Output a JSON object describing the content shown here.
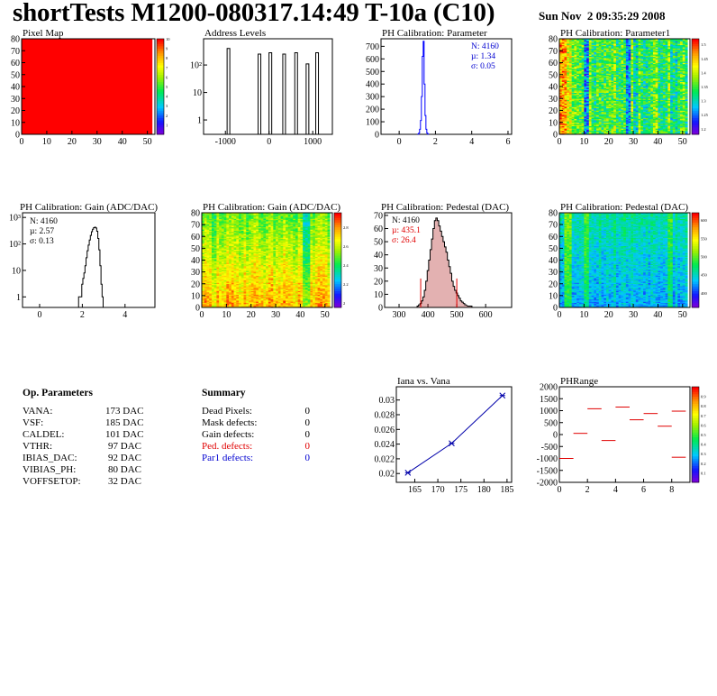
{
  "page": {
    "title": "shortTests M1200-080317.14:49 T-10a (C10)",
    "date": "Sun Nov  2 09:35:29 2008"
  },
  "chart_data": [
    {
      "id": "pixel_map",
      "type": "heatmap",
      "title": "Pixel Map",
      "xlim": [
        0,
        53
      ],
      "ylim": [
        0,
        80
      ],
      "xticks": [
        0,
        10,
        20,
        30,
        40,
        50
      ],
      "yticks": [
        0,
        10,
        20,
        30,
        40,
        50,
        60,
        70,
        80
      ],
      "fill": "uniform",
      "value": 10,
      "zlim": [
        0,
        10
      ],
      "zticks": [
        0,
        1,
        2,
        3,
        4,
        5,
        6,
        7,
        8,
        9,
        10
      ],
      "zticklabels": [
        "",
        "1",
        "2",
        "3",
        "4",
        "5",
        "6",
        "7",
        "8",
        "9",
        "10"
      ]
    },
    {
      "id": "address_levels",
      "type": "histogram",
      "title": "Address Levels",
      "xlim": [
        -1500,
        1450
      ],
      "ylog": true,
      "ylim": [
        0.3,
        900
      ],
      "xticks": [
        -1000,
        0,
        1000
      ],
      "yticks": [
        1,
        10,
        100
      ],
      "yticklabels": [
        "1",
        "10",
        "10²"
      ],
      "peaks": [
        {
          "x": -930,
          "height": 400
        },
        {
          "x": -220,
          "height": 250
        },
        {
          "x": 30,
          "height": 280
        },
        {
          "x": 345,
          "height": 250
        },
        {
          "x": 620,
          "height": 280
        },
        {
          "x": 880,
          "height": 110
        },
        {
          "x": 1100,
          "height": 280
        }
      ]
    },
    {
      "id": "ph_param",
      "type": "histogram",
      "title": "PH Calibration: Parameter",
      "xlim": [
        -1,
        6.2
      ],
      "ylim": [
        0,
        760
      ],
      "xticks": [
        0,
        2,
        4,
        6
      ],
      "yticks": [
        0,
        100,
        200,
        300,
        400,
        500,
        600,
        700
      ],
      "bins": [
        [
          1.05,
          2
        ],
        [
          1.1,
          10
        ],
        [
          1.15,
          40
        ],
        [
          1.2,
          110
        ],
        [
          1.25,
          300
        ],
        [
          1.3,
          620
        ],
        [
          1.35,
          740
        ],
        [
          1.4,
          400
        ],
        [
          1.45,
          150
        ],
        [
          1.5,
          40
        ],
        [
          1.55,
          10
        ],
        [
          1.6,
          2
        ]
      ],
      "stats": {
        "n": "N: 4160",
        "mean": "µ: 1.34",
        "sigma": "σ: 0.05"
      }
    },
    {
      "id": "ph_param1",
      "type": "heatmap",
      "title": "PH Calibration: Parameter1",
      "xlim": [
        0,
        53
      ],
      "ylim": [
        0,
        80
      ],
      "xticks": [
        0,
        10,
        20,
        30,
        40,
        50
      ],
      "yticks": [
        0,
        10,
        20,
        30,
        40,
        50,
        60,
        70,
        80
      ],
      "zlim": [
        1.18,
        1.52
      ],
      "zticks": [
        1.2,
        1.25,
        1.3,
        1.35,
        1.4,
        1.45,
        1.5
      ],
      "zticklabels": [
        "1.2",
        "1.25",
        "1.3",
        "1.35",
        "1.4",
        "1.45",
        "1.5"
      ]
    },
    {
      "id": "gain_hist",
      "type": "histogram",
      "title": "PH Calibration: Gain (ADC/DAC)",
      "xlim": [
        -0.8,
        5.4
      ],
      "ylog": true,
      "ylim": [
        0.4,
        1500
      ],
      "xticks": [
        0,
        2,
        4
      ],
      "yticks": [
        1,
        10,
        100,
        1000
      ],
      "yticklabels": [
        "1",
        "10",
        "10²",
        "10³"
      ],
      "bins": [
        [
          1.85,
          1
        ],
        [
          1.95,
          1
        ],
        [
          2.0,
          3
        ],
        [
          2.05,
          5
        ],
        [
          2.1,
          8
        ],
        [
          2.15,
          15
        ],
        [
          2.2,
          30
        ],
        [
          2.25,
          55
        ],
        [
          2.3,
          90
        ],
        [
          2.35,
          140
        ],
        [
          2.4,
          210
        ],
        [
          2.45,
          290
        ],
        [
          2.5,
          360
        ],
        [
          2.55,
          410
        ],
        [
          2.6,
          430
        ],
        [
          2.65,
          400
        ],
        [
          2.7,
          300
        ],
        [
          2.75,
          160
        ],
        [
          2.8,
          60
        ],
        [
          2.85,
          15
        ],
        [
          2.9,
          3
        ],
        [
          2.95,
          1
        ]
      ],
      "stats": {
        "n": "N: 4160",
        "mean": "µ: 2.57",
        "sigma": "σ: 0.13"
      }
    },
    {
      "id": "gain_map",
      "type": "heatmap",
      "title": "PH Calibration: Gain (ADC/DAC)",
      "xlim": [
        0,
        53
      ],
      "ylim": [
        0,
        80
      ],
      "xticks": [
        0,
        10,
        20,
        30,
        40,
        50
      ],
      "yticks": [
        0,
        10,
        20,
        30,
        40,
        50,
        60,
        70,
        80
      ],
      "zlim": [
        1.95,
        2.95
      ],
      "zticks": [
        2,
        2.2,
        2.4,
        2.6,
        2.8
      ],
      "zticklabels": [
        "2",
        "2.2",
        "2.4",
        "2.6",
        "2.8"
      ]
    },
    {
      "id": "pedestal_hist",
      "type": "histogram",
      "title": "PH Calibration: Pedestal (DAC)",
      "xlim": [
        250,
        690
      ],
      "ylim": [
        0,
        72
      ],
      "xticks": [
        300,
        400,
        500,
        600
      ],
      "yticks": [
        0,
        10,
        20,
        30,
        40,
        50,
        60,
        70
      ],
      "bins": [
        [
          365,
          1
        ],
        [
          370,
          2
        ],
        [
          375,
          3
        ],
        [
          380,
          5
        ],
        [
          385,
          8
        ],
        [
          390,
          13
        ],
        [
          395,
          20
        ],
        [
          400,
          28
        ],
        [
          405,
          36
        ],
        [
          410,
          44
        ],
        [
          415,
          52
        ],
        [
          420,
          60
        ],
        [
          425,
          66
        ],
        [
          430,
          68
        ],
        [
          435,
          66
        ],
        [
          440,
          62
        ],
        [
          445,
          58
        ],
        [
          450,
          54
        ],
        [
          455,
          50
        ],
        [
          460,
          46
        ],
        [
          465,
          42
        ],
        [
          470,
          36
        ],
        [
          475,
          31
        ],
        [
          480,
          26
        ],
        [
          485,
          20
        ],
        [
          490,
          16
        ],
        [
          495,
          13
        ],
        [
          500,
          11
        ],
        [
          505,
          9
        ],
        [
          510,
          7
        ],
        [
          515,
          5
        ],
        [
          520,
          4
        ],
        [
          525,
          3
        ],
        [
          530,
          2
        ],
        [
          540,
          1
        ],
        [
          550,
          1
        ]
      ],
      "cut_lines": [
        {
          "x": 375,
          "height": 22
        },
        {
          "x": 500,
          "height": 22
        }
      ],
      "stats": {
        "n": "N: 4160",
        "mean": "µ: 435.1",
        "sigma": "σ: 26.4"
      }
    },
    {
      "id": "pedestal_map",
      "type": "heatmap",
      "title": "PH Calibration: Pedestal (DAC)",
      "xlim": [
        0,
        53
      ],
      "ylim": [
        0,
        80
      ],
      "xticks": [
        0,
        10,
        20,
        30,
        40,
        50
      ],
      "yticks": [
        0,
        10,
        20,
        30,
        40,
        50,
        60,
        70,
        80
      ],
      "zlim": [
        360,
        620
      ],
      "zticks": [
        400,
        450,
        500,
        550,
        600
      ],
      "zticklabels": [
        "400",
        "450",
        "500",
        "550",
        "600"
      ]
    },
    {
      "id": "iana_vana",
      "type": "line",
      "title": "Iana vs. Vana",
      "xlim": [
        161,
        186
      ],
      "ylim": [
        0.0188,
        0.0318
      ],
      "xticks": [
        165,
        170,
        175,
        180,
        185
      ],
      "yticks": [
        0.02,
        0.022,
        0.024,
        0.026,
        0.028,
        0.03
      ],
      "yticklabels": [
        "0.02",
        "0.022",
        "0.024",
        "0.026",
        "0.028",
        "0.03"
      ],
      "x": [
        163.5,
        173,
        184
      ],
      "y": [
        0.0201,
        0.0241,
        0.0306
      ]
    },
    {
      "id": "phrange",
      "type": "scatter",
      "title": "PHRange",
      "xlim": [
        0,
        9.3
      ],
      "ylim": [
        -2000,
        2000
      ],
      "xticks": [
        0,
        2,
        4,
        6,
        8
      ],
      "yticks": [
        -2000,
        -1500,
        -1000,
        -500,
        0,
        500,
        1000,
        1500,
        2000
      ],
      "points": [
        {
          "x": 0.5,
          "y": -1000
        },
        {
          "x": 1.5,
          "y": 50
        },
        {
          "x": 2.5,
          "y": 1080
        },
        {
          "x": 3.5,
          "y": -250
        },
        {
          "x": 4.5,
          "y": 1150
        },
        {
          "x": 5.5,
          "y": 620
        },
        {
          "x": 6.5,
          "y": 880
        },
        {
          "x": 7.5,
          "y": 350
        },
        {
          "x": 8.5,
          "y": 980
        },
        {
          "x": 8.5,
          "y": -950
        }
      ],
      "zlim": [
        0,
        1
      ],
      "zticks": [
        0.1,
        0.2,
        0.3,
        0.4,
        0.5,
        0.6,
        0.7,
        0.8,
        0.9
      ],
      "zticklabels": [
        "0.1",
        "0.2",
        "0.3",
        "0.4",
        "0.5",
        "0.6",
        "0.7",
        "0.8",
        "0.9"
      ]
    }
  ],
  "op_params": {
    "heading": "Op. Parameters",
    "rows": [
      {
        "name": "VANA:",
        "value": "173 DAC"
      },
      {
        "name": "VSF:",
        "value": "185 DAC"
      },
      {
        "name": "CALDEL:",
        "value": "101 DAC"
      },
      {
        "name": "VTHR:",
        "value": "97 DAC"
      },
      {
        "name": "IBIAS_DAC:",
        "value": "92 DAC"
      },
      {
        "name": "VIBIAS_PH:",
        "value": "80 DAC"
      },
      {
        "name": "VOFFSETOP:",
        "value": "32 DAC"
      }
    ]
  },
  "summary": {
    "heading": "Summary",
    "rows": [
      {
        "name": "Dead Pixels:",
        "value": "0"
      },
      {
        "name": "Mask defects:",
        "value": "0"
      },
      {
        "name": "Gain defects:",
        "value": "0"
      },
      {
        "name": "Ped. defects:",
        "value": "0"
      },
      {
        "name": "Par1 defects:",
        "value": "0"
      }
    ]
  },
  "colors": {
    "pixel_map_fill": "#ff0000",
    "hist_line": "#000000",
    "param_hist": "#0000ff",
    "stats_blue": "#0000d0",
    "stats_red": "#e00000",
    "ped_fill": "#b02020",
    "iana_line": "#0000aa",
    "phrange_marker": "#e00000",
    "ped_defects": "#e00000",
    "par1_defects": "#0000d0"
  }
}
